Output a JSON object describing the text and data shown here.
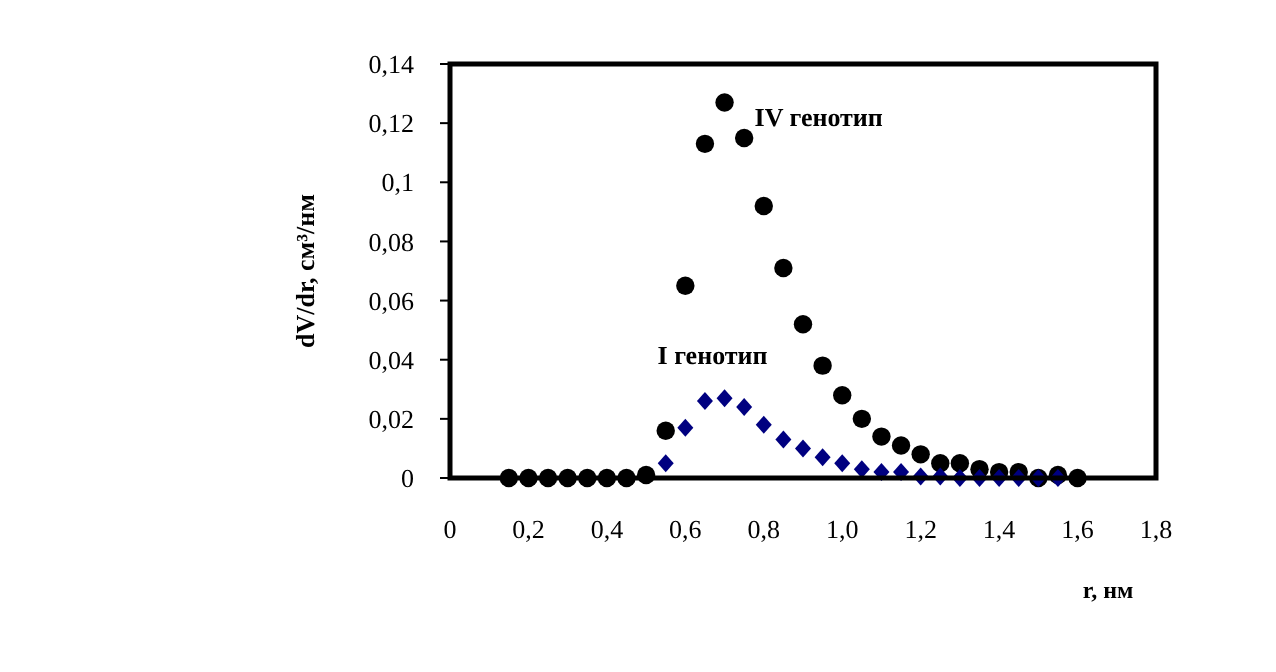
{
  "chart_data": {
    "type": "scatter",
    "xlabel": "r, нм",
    "ylabel": "dV/dr, см³/нм",
    "xlim": [
      0,
      1.8
    ],
    "ylim": [
      0,
      0.14
    ],
    "xticks": [
      0,
      {
        "value": 0.2,
        "label": "0,2"
      },
      {
        "value": 0.4,
        "label": "0,4"
      },
      {
        "value": 0.6,
        "label": "0,6"
      },
      {
        "value": 0.8,
        "label": "0,8"
      },
      {
        "value": 1.0,
        "label": "1,0"
      },
      {
        "value": 1.2,
        "label": "1,2"
      },
      {
        "value": 1.4,
        "label": "1,4"
      },
      {
        "value": 1.6,
        "label": "1,6"
      },
      {
        "value": 1.8,
        "label": "1,8"
      }
    ],
    "yticks": [
      0,
      {
        "value": 0.02,
        "label": "0,02"
      },
      {
        "value": 0.04,
        "label": "0,04"
      },
      {
        "value": 0.06,
        "label": "0,06"
      },
      {
        "value": 0.08,
        "label": "0,08"
      },
      {
        "value": 0.1,
        "label": "0,1"
      },
      {
        "value": 0.12,
        "label": "0,12"
      },
      {
        "value": 0.14,
        "label": "0,14"
      }
    ],
    "series": [
      {
        "name": "IV генотип",
        "color": "#000000",
        "marker": "circle",
        "x": [
          0.15,
          0.2,
          0.25,
          0.3,
          0.35,
          0.4,
          0.45,
          0.5,
          0.55,
          0.6,
          0.65,
          0.7,
          0.75,
          0.8,
          0.85,
          0.9,
          0.95,
          1.0,
          1.05,
          1.1,
          1.15,
          1.2,
          1.25,
          1.3,
          1.35,
          1.4,
          1.45,
          1.5,
          1.55,
          1.6
        ],
        "values": [
          0,
          0,
          0,
          0,
          0,
          0,
          0,
          0.001,
          0.016,
          0.065,
          0.113,
          0.127,
          0.115,
          0.092,
          0.071,
          0.052,
          0.038,
          0.028,
          0.02,
          0.014,
          0.011,
          0.008,
          0.005,
          0.005,
          0.003,
          0.002,
          0.002,
          0,
          0.001,
          0
        ]
      },
      {
        "name": "I генотип",
        "color": "#000080",
        "marker": "diamond",
        "x": [
          0.55,
          0.6,
          0.65,
          0.7,
          0.75,
          0.8,
          0.85,
          0.9,
          0.95,
          1.0,
          1.05,
          1.1,
          1.15,
          1.2,
          1.25,
          1.3,
          1.35,
          1.4,
          1.45,
          1.5,
          1.55
        ],
        "values": [
          0.005,
          0.017,
          0.026,
          0.027,
          0.024,
          0.018,
          0.013,
          0.01,
          0.007,
          0.005,
          0.003,
          0.002,
          0.002,
          0.0005,
          0.0005,
          0,
          0,
          0,
          0,
          0,
          0
        ]
      }
    ]
  }
}
